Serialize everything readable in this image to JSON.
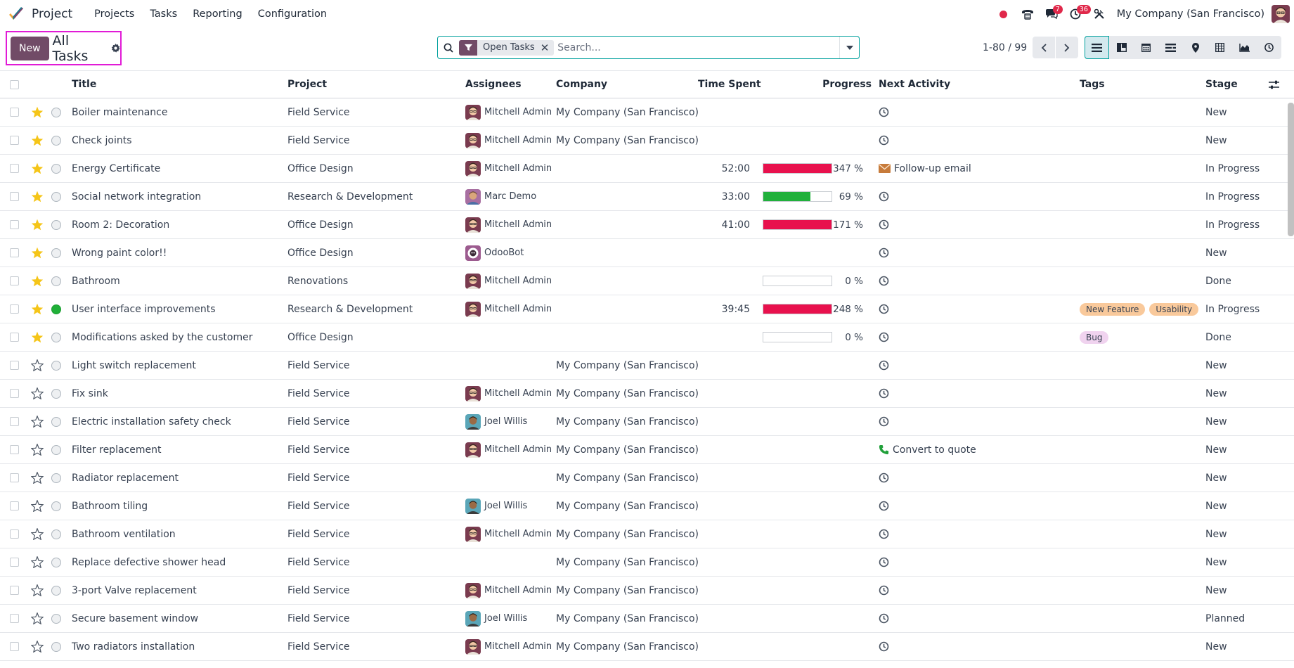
{
  "app": {
    "name": "Project",
    "menu": [
      "Projects",
      "Tasks",
      "Reporting",
      "Configuration"
    ],
    "company": "My Company (San Francisco)",
    "messages_count": "7",
    "activities_count": "36"
  },
  "control": {
    "new_label": "New",
    "title": "All Tasks",
    "facet_label": "Open Tasks",
    "search_placeholder": "Search...",
    "pager": "1-80 / 99"
  },
  "columns": {
    "title": "Title",
    "project": "Project",
    "assignees": "Assignees",
    "company": "Company",
    "time_spent": "Time Spent",
    "progress": "Progress",
    "next_activity": "Next Activity",
    "tags": "Tags",
    "stage": "Stage"
  },
  "colors": {
    "brand": "#714b67",
    "accent": "#00a09d",
    "progress_over": "#e8114d",
    "progress_ok": "#21b03c",
    "star": "#f5c518"
  },
  "rows": [
    {
      "title": "Boiler maintenance",
      "project": "Field Service",
      "assignee": "Mitchell Admin",
      "avatar": "mitchell",
      "company": "My Company (San Francisco)",
      "time": "",
      "progress": null,
      "progress_label": "",
      "activity": "clock",
      "activity_label": "",
      "tags": [],
      "stage": "New",
      "starred": true,
      "status": "normal"
    },
    {
      "title": "Check joints",
      "project": "Field Service",
      "assignee": "Mitchell Admin",
      "avatar": "mitchell",
      "company": "My Company (San Francisco)",
      "time": "",
      "progress": null,
      "progress_label": "",
      "activity": "clock",
      "activity_label": "",
      "tags": [],
      "stage": "New",
      "starred": true,
      "status": "normal"
    },
    {
      "title": "Energy Certificate",
      "project": "Office Design",
      "assignee": "Mitchell Admin",
      "avatar": "mitchell",
      "company": "",
      "time": "52:00",
      "progress": 347,
      "progress_label": "347 %",
      "activity": "email",
      "activity_label": "Follow-up email",
      "tags": [],
      "stage": "In Progress",
      "starred": true,
      "status": "normal"
    },
    {
      "title": "Social network integration",
      "project": "Research & Development",
      "assignee": "Marc Demo",
      "avatar": "marc",
      "company": "",
      "time": "33:00",
      "progress": 69,
      "progress_label": "69 %",
      "activity": "clock",
      "activity_label": "",
      "tags": [],
      "stage": "In Progress",
      "starred": true,
      "status": "normal"
    },
    {
      "title": "Room 2: Decoration",
      "project": "Office Design",
      "assignee": "Mitchell Admin",
      "avatar": "mitchell",
      "company": "",
      "time": "41:00",
      "progress": 171,
      "progress_label": "171 %",
      "activity": "clock",
      "activity_label": "",
      "tags": [],
      "stage": "In Progress",
      "starred": true,
      "status": "normal"
    },
    {
      "title": "Wrong paint color!!",
      "project": "Office Design",
      "assignee": "OdooBot",
      "avatar": "odoobot",
      "company": "",
      "time": "",
      "progress": null,
      "progress_label": "",
      "activity": "clock",
      "activity_label": "",
      "tags": [],
      "stage": "New",
      "starred": true,
      "status": "normal"
    },
    {
      "title": "Bathroom",
      "project": "Renovations",
      "assignee": "Mitchell Admin",
      "avatar": "mitchell",
      "company": "",
      "time": "",
      "progress": 0,
      "progress_label": "0 %",
      "activity": "clock",
      "activity_label": "",
      "tags": [],
      "stage": "Done",
      "starred": true,
      "status": "normal"
    },
    {
      "title": "User interface improvements",
      "project": "Research & Development",
      "assignee": "Mitchell Admin",
      "avatar": "mitchell",
      "company": "",
      "time": "39:45",
      "progress": 248,
      "progress_label": "248 %",
      "activity": "clock",
      "activity_label": "",
      "tags": [
        {
          "label": "New Feature",
          "color": "#f9c99b"
        },
        {
          "label": "Usability",
          "color": "#f9c99b"
        }
      ],
      "stage": "In Progress",
      "starred": true,
      "status": "done"
    },
    {
      "title": "Modifications asked by the customer",
      "project": "Office Design",
      "assignee": "",
      "avatar": "",
      "company": "",
      "time": "",
      "progress": 0,
      "progress_label": "0 %",
      "activity": "clock",
      "activity_label": "",
      "tags": [
        {
          "label": "Bug",
          "color": "#f0d3ef"
        }
      ],
      "stage": "Done",
      "starred": true,
      "status": "normal"
    },
    {
      "title": "Light switch replacement",
      "project": "Field Service",
      "assignee": "",
      "avatar": "",
      "company": "My Company (San Francisco)",
      "time": "",
      "progress": null,
      "progress_label": "",
      "activity": "clock",
      "activity_label": "",
      "tags": [],
      "stage": "New",
      "starred": false,
      "status": "normal"
    },
    {
      "title": "Fix sink",
      "project": "Field Service",
      "assignee": "Mitchell Admin",
      "avatar": "mitchell",
      "company": "My Company (San Francisco)",
      "time": "",
      "progress": null,
      "progress_label": "",
      "activity": "clock",
      "activity_label": "",
      "tags": [],
      "stage": "New",
      "starred": false,
      "status": "normal"
    },
    {
      "title": "Electric installation safety check",
      "project": "Field Service",
      "assignee": "Joel Willis",
      "avatar": "joel",
      "company": "My Company (San Francisco)",
      "time": "",
      "progress": null,
      "progress_label": "",
      "activity": "clock",
      "activity_label": "",
      "tags": [],
      "stage": "New",
      "starred": false,
      "status": "normal"
    },
    {
      "title": "Filter replacement",
      "project": "Field Service",
      "assignee": "Mitchell Admin",
      "avatar": "mitchell",
      "company": "My Company (San Francisco)",
      "time": "",
      "progress": null,
      "progress_label": "",
      "activity": "phone",
      "activity_label": "Convert to quote",
      "tags": [],
      "stage": "New",
      "starred": false,
      "status": "normal"
    },
    {
      "title": "Radiator replacement",
      "project": "Field Service",
      "assignee": "",
      "avatar": "",
      "company": "My Company (San Francisco)",
      "time": "",
      "progress": null,
      "progress_label": "",
      "activity": "clock",
      "activity_label": "",
      "tags": [],
      "stage": "New",
      "starred": false,
      "status": "normal"
    },
    {
      "title": "Bathroom tiling",
      "project": "Field Service",
      "assignee": "Joel Willis",
      "avatar": "joel",
      "company": "My Company (San Francisco)",
      "time": "",
      "progress": null,
      "progress_label": "",
      "activity": "clock",
      "activity_label": "",
      "tags": [],
      "stage": "New",
      "starred": false,
      "status": "normal"
    },
    {
      "title": "Bathroom ventilation",
      "project": "Field Service",
      "assignee": "Mitchell Admin",
      "avatar": "mitchell",
      "company": "My Company (San Francisco)",
      "time": "",
      "progress": null,
      "progress_label": "",
      "activity": "clock",
      "activity_label": "",
      "tags": [],
      "stage": "New",
      "starred": false,
      "status": "normal"
    },
    {
      "title": "Replace defective shower head",
      "project": "Field Service",
      "assignee": "",
      "avatar": "",
      "company": "My Company (San Francisco)",
      "time": "",
      "progress": null,
      "progress_label": "",
      "activity": "clock",
      "activity_label": "",
      "tags": [],
      "stage": "New",
      "starred": false,
      "status": "normal"
    },
    {
      "title": "3-port Valve replacement",
      "project": "Field Service",
      "assignee": "Mitchell Admin",
      "avatar": "mitchell",
      "company": "My Company (San Francisco)",
      "time": "",
      "progress": null,
      "progress_label": "",
      "activity": "clock",
      "activity_label": "",
      "tags": [],
      "stage": "New",
      "starred": false,
      "status": "normal"
    },
    {
      "title": "Secure basement window",
      "project": "Field Service",
      "assignee": "Joel Willis",
      "avatar": "joel",
      "company": "My Company (San Francisco)",
      "time": "",
      "progress": null,
      "progress_label": "",
      "activity": "clock",
      "activity_label": "",
      "tags": [],
      "stage": "Planned",
      "starred": false,
      "status": "normal"
    },
    {
      "title": "Two radiators installation",
      "project": "Field Service",
      "assignee": "Mitchell Admin",
      "avatar": "mitchell",
      "company": "My Company (San Francisco)",
      "time": "",
      "progress": null,
      "progress_label": "",
      "activity": "clock",
      "activity_label": "",
      "tags": [],
      "stage": "New",
      "starred": false,
      "status": "normal"
    }
  ]
}
